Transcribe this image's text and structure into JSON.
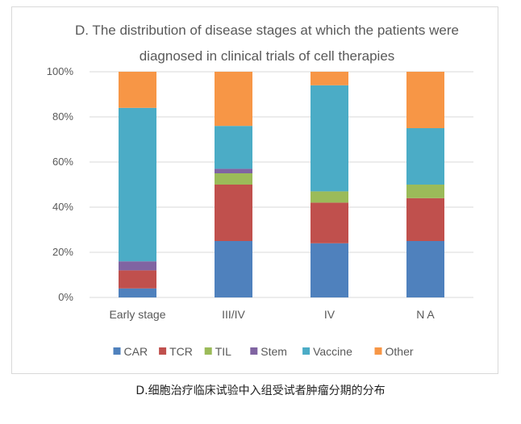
{
  "chart_data": {
    "type": "bar",
    "stacked": true,
    "percent": true,
    "title_line1": "D. The distribution of disease stages at which the patients were",
    "title_line2": "diagnosed in clinical trials of cell therapies",
    "categories": [
      "Early stage",
      "III/IV",
      "IV",
      "N A"
    ],
    "ylim": [
      0,
      100
    ],
    "yticks": [
      "0%",
      "20%",
      "40%",
      "60%",
      "80%",
      "100%"
    ],
    "ytick_values": [
      0,
      20,
      40,
      60,
      80,
      100
    ],
    "grid": true,
    "legend_position": "bottom",
    "series": [
      {
        "name": "CAR",
        "color": "#4f81bd",
        "values": [
          4,
          25,
          24,
          25
        ]
      },
      {
        "name": "TCR",
        "color": "#c0504d",
        "values": [
          8,
          25,
          18,
          19
        ]
      },
      {
        "name": "TIL",
        "color": "#9bbb59",
        "values": [
          0,
          5,
          5,
          6
        ]
      },
      {
        "name": "Stem",
        "color": "#8064a2",
        "values": [
          4,
          2,
          0,
          0
        ]
      },
      {
        "name": "Vaccine",
        "color": "#4bacc6",
        "values": [
          68,
          19,
          47,
          25
        ]
      },
      {
        "name": "Other",
        "color": "#f79646",
        "values": [
          16,
          24,
          6,
          25
        ]
      }
    ]
  },
  "caption": "D.细胞治疗临床试验中入组受试者肿瘤分期的分布"
}
